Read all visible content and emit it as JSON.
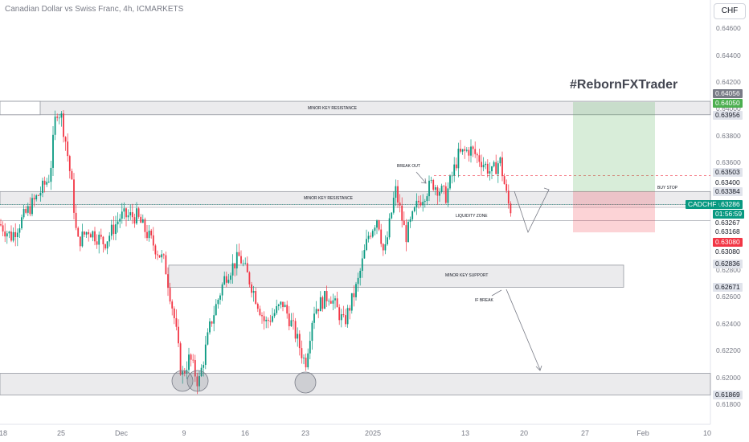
{
  "header": {
    "title": "Canadian Dollar vs Swiss Franc, 4h, ICMARKETS",
    "currency": "CHF"
  },
  "watermark": "#RebornFXTrader",
  "chart_data": {
    "type": "candlestick",
    "symbol": "CADCHF",
    "timeframe": "4h",
    "ylim": [
      0.617,
      0.647
    ],
    "y_ticks": [
      0.618,
      0.62,
      0.622,
      0.624,
      0.626,
      0.628,
      0.63,
      0.632,
      0.634,
      0.636,
      0.638,
      0.64,
      0.642,
      0.644,
      0.646
    ],
    "x_ticks": [
      "18",
      "25",
      "Dec",
      "9",
      "16",
      "23",
      "2025",
      "13",
      "20",
      "27",
      "Feb",
      "10"
    ],
    "price_tags": [
      {
        "label": "0.64056",
        "bg": "#787b86",
        "fg": "#ffffff"
      },
      {
        "label": "0.64050",
        "bg": "#4caf50",
        "fg": "#ffffff"
      },
      {
        "label": "0.63956",
        "bg": "#e0e3eb",
        "fg": "#131722"
      },
      {
        "label": "0.63503",
        "bg": "#e0e3eb",
        "fg": "#131722"
      },
      {
        "label": "0.63400",
        "bg": "#ffffff",
        "fg": "#131722"
      },
      {
        "label": "0.63384",
        "bg": "#e0e3eb",
        "fg": "#131722"
      },
      {
        "label": "0.63286",
        "bg": "#089981",
        "fg": "#ffffff"
      },
      {
        "label": "01:56:59",
        "bg": "#089981",
        "fg": "#ffffff"
      },
      {
        "label": "0.63267",
        "bg": "#ffffff",
        "fg": "#131722"
      },
      {
        "label": "0.63168",
        "bg": "#ffffff",
        "fg": "#131722"
      },
      {
        "label": "0.63080",
        "bg": "#f23645",
        "fg": "#ffffff"
      },
      {
        "label": "0.63080",
        "bg": "#ffffff",
        "fg": "#131722"
      },
      {
        "label": "0.62836",
        "bg": "#e0e3eb",
        "fg": "#131722"
      },
      {
        "label": "0.62671",
        "bg": "#e0e3eb",
        "fg": "#131722"
      },
      {
        "label": "0.61869",
        "bg": "#e0e3eb",
        "fg": "#131722"
      }
    ],
    "symbol_tag": {
      "label": "CADCHF",
      "bg": "#089981",
      "fg": "#ffffff"
    },
    "zones": [
      {
        "label": "MINOR KEY RESISTANCE",
        "top": 0.64056,
        "bottom": 0.63956
      },
      {
        "label": "MINOR KEY RESISTANCE",
        "top": 0.63384,
        "bottom": 0.63286
      },
      {
        "label": "MINOR KEY SUPPORT",
        "top": 0.62836,
        "bottom": 0.62671
      },
      {
        "label": "",
        "top": 0.6203,
        "bottom": 0.61869
      }
    ],
    "annotations": [
      "BREAK OUT",
      "LIQUIDITY ZONE",
      "BUY STOP",
      "IF BREAK"
    ],
    "position": {
      "entry": 0.63384,
      "target": 0.6405,
      "stop": 0.6308
    },
    "colors": {
      "up": "#089981",
      "down": "#f23645"
    }
  }
}
